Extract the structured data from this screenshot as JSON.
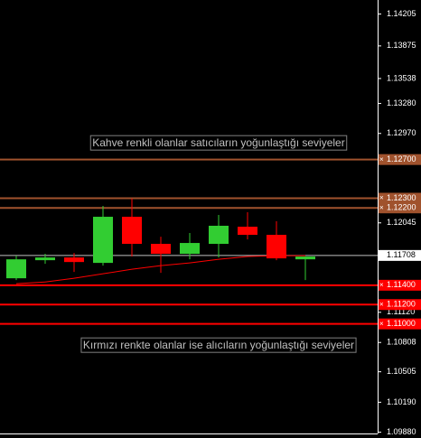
{
  "chart_data": {
    "type": "candlestick",
    "up_color": "#32cd32",
    "down_color": "#ff0000",
    "open": [
      1.11472,
      1.11659,
      1.11687,
      1.11631,
      1.12108,
      1.11828,
      1.11725,
      1.11828,
      1.12005,
      1.11921,
      1.11668
    ],
    "high": [
      1.11706,
      1.11725,
      1.11734,
      1.12221,
      1.12296,
      1.11902,
      1.1194,
      1.12127,
      1.12155,
      1.12062,
      1.11697
    ],
    "low": [
      1.11453,
      1.11622,
      1.11537,
      1.11603,
      1.11697,
      1.11528,
      1.11668,
      1.11687,
      1.11874,
      1.11659,
      1.11453
    ],
    "close": [
      1.11668,
      1.11687,
      1.1164,
      1.12108,
      1.11828,
      1.11725,
      1.11837,
      1.12015,
      1.11921,
      1.11678,
      1.11697
    ],
    "moving_average": {
      "color": "#ff0000",
      "values": [
        1.11416,
        1.11434,
        1.11472,
        1.11519,
        1.11565,
        1.11603,
        1.11631,
        1.11668,
        1.11697,
        1.11706,
        1.11706
      ]
    },
    "ylim": [
      1.0982,
      1.1435
    ],
    "yticks": [
      1.14205,
      1.13875,
      1.13538,
      {
        "value": 1.1328,
        "label": "1.13280"
      },
      {
        "value": 1.1297,
        "label": "1.12970"
      },
      1.12045,
      {
        "value": 1.1112,
        "label": "1.11120"
      },
      1.10808,
      1.10505,
      {
        "value": 1.1019,
        "label": "1.10190"
      },
      {
        "value": 1.0988,
        "label": "1.09880"
      }
    ],
    "current_price": 1.11708,
    "levels": [
      {
        "value": 1.127,
        "label": "1.12700",
        "color": "#a0522d"
      },
      {
        "value": 1.123,
        "label": "1.12300",
        "color": "#a0522d"
      },
      {
        "value": 1.122,
        "label": "1.12200",
        "color": "#a0522d"
      },
      {
        "value": 1.114,
        "label": "1.11400",
        "color": "#ff0000"
      },
      {
        "value": 1.112,
        "label": "1.11200",
        "color": "#ff0000"
      },
      {
        "value": 1.11,
        "label": "1.11000",
        "color": "#ff0000"
      }
    ],
    "annotations": [
      "Kahve renkli olanlar satıcıların yoğunlaştığı seviyeler",
      "Kırmızı renkte olanlar ise alıcıların yoğunlaştığı seviyeler"
    ]
  }
}
